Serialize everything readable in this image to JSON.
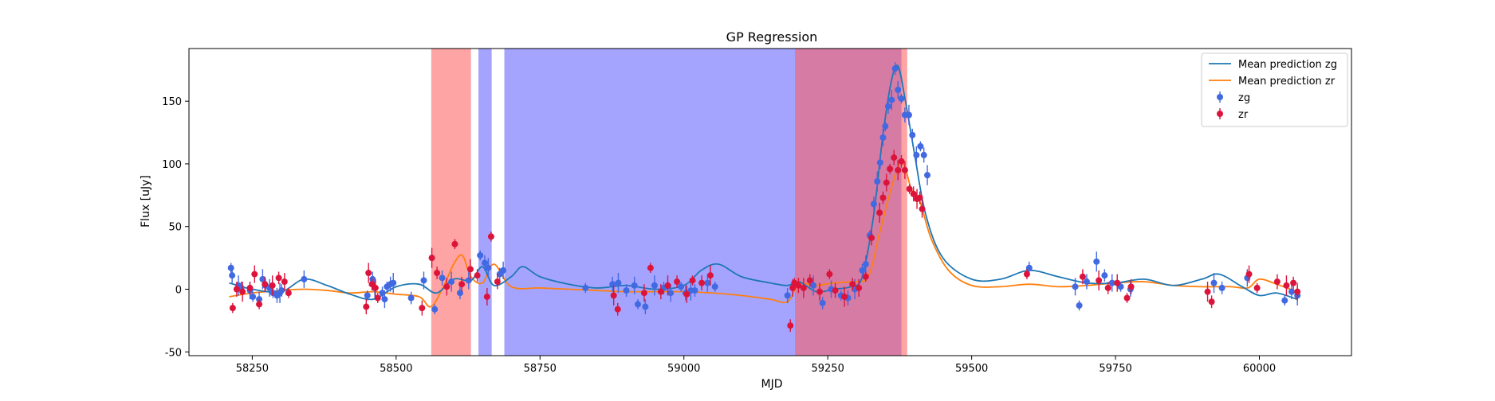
{
  "chart_data": {
    "type": "scatter",
    "title": "GP Regression",
    "xlabel": "MJD",
    "ylabel": "Flux [uJy]",
    "xlim": [
      58140,
      60160
    ],
    "ylim": [
      -53,
      192
    ],
    "xticks": [
      58250,
      58500,
      58750,
      59000,
      59250,
      59500,
      59750,
      60000
    ],
    "yticks": [
      -50,
      0,
      50,
      100,
      150
    ],
    "legend_position": "top-right",
    "legend": [
      "Mean prediction zg",
      "Mean prediction zr",
      "zg",
      "zr"
    ],
    "colors": {
      "zg_line": "#1f77b4",
      "zr_line": "#ff7f0e",
      "zg_points": "#4169e1",
      "zr_points": "#dc143c",
      "span_red": "#ff5a5a",
      "span_blue": "#5a5aff"
    },
    "shaded_regions": [
      {
        "band": "zr",
        "x0": 58561,
        "x1": 58630
      },
      {
        "band": "zg",
        "x0": 58643,
        "x1": 58666
      },
      {
        "band": "zg",
        "x0": 58688,
        "x1": 59193
      },
      {
        "band": "zg",
        "x0": 59193,
        "x1": 59378
      },
      {
        "band": "zr",
        "x0": 59193,
        "x1": 59388
      }
    ],
    "series": [
      {
        "name": "Mean prediction zg",
        "kind": "line",
        "x": [
          58210,
          58250,
          58300,
          58340,
          58380,
          58420,
          58460,
          58500,
          58540,
          58570,
          58600,
          58630,
          58650,
          58670,
          58700,
          58720,
          58750,
          58800,
          58850,
          58900,
          58950,
          59000,
          59030,
          59060,
          59100,
          59150,
          59180,
          59200,
          59230,
          59260,
          59290,
          59310,
          59330,
          59345,
          59360,
          59372,
          59385,
          59400,
          59420,
          59450,
          59500,
          59550,
          59600,
          59650,
          59700,
          59750,
          59800,
          59850,
          59900,
          59930,
          59970,
          60000,
          60030,
          60065
        ],
        "y": [
          5,
          0,
          -2,
          8,
          3,
          -4,
          -8,
          2,
          4,
          -3,
          8,
          7,
          18,
          3,
          10,
          18,
          10,
          4,
          1,
          3,
          0,
          3,
          15,
          20,
          10,
          5,
          3,
          6,
          -2,
          0,
          2,
          10,
          60,
          120,
          165,
          178,
          150,
          110,
          60,
          25,
          8,
          8,
          15,
          10,
          5,
          5,
          8,
          3,
          8,
          12,
          2,
          -5,
          -3,
          -8
        ]
      },
      {
        "name": "Mean prediction zr",
        "kind": "line",
        "x": [
          58210,
          58250,
          58300,
          58340,
          58380,
          58420,
          58460,
          58500,
          58540,
          58560,
          58580,
          58600,
          58615,
          58630,
          58650,
          58670,
          58700,
          58750,
          58800,
          58850,
          58900,
          58950,
          59000,
          59050,
          59100,
          59150,
          59180,
          59200,
          59230,
          59260,
          59290,
          59320,
          59340,
          59360,
          59375,
          59385,
          59395,
          59410,
          59430,
          59460,
          59500,
          59550,
          59600,
          59650,
          59700,
          59750,
          59800,
          59850,
          59900,
          59950,
          59980,
          60000,
          60030,
          60065
        ],
        "y": [
          -6,
          -3,
          -1,
          0,
          -1,
          -3,
          -2,
          -4,
          -6,
          -14,
          0,
          20,
          27,
          10,
          5,
          20,
          2,
          1,
          0,
          -1,
          -2,
          -2,
          -2,
          -3,
          -5,
          -8,
          -10,
          4,
          3,
          5,
          6,
          10,
          45,
          80,
          100,
          96,
          80,
          70,
          40,
          15,
          3,
          2,
          4,
          2,
          3,
          5,
          6,
          3,
          2,
          2,
          1,
          8,
          4,
          -2
        ]
      },
      {
        "name": "zg",
        "kind": "points",
        "x": [
          58213,
          58215,
          58226,
          58231,
          58246,
          58251,
          58262,
          58268,
          58273,
          58280,
          58286,
          58293,
          58298,
          58301,
          58340,
          58450,
          58459,
          58463,
          58476,
          58480,
          58484,
          58490,
          58495,
          58526,
          58548,
          58567,
          58580,
          58596,
          58611,
          58626,
          58646,
          58654,
          58660,
          58680,
          58686,
          58829,
          58876,
          58886,
          58900,
          58914,
          58920,
          58933,
          58949,
          58965,
          58977,
          58995,
          59003,
          59012,
          59019,
          59041,
          59054,
          59180,
          59225,
          59241,
          59256,
          59273,
          59285,
          59297,
          59310,
          59316,
          59323,
          59330,
          59336,
          59341,
          59346,
          59350,
          59355,
          59361,
          59367,
          59372,
          59378,
          59384,
          59391,
          59397,
          59404,
          59411,
          59417,
          59423,
          59600,
          59680,
          59687,
          59700,
          59717,
          59731,
          59744,
          59759,
          59776,
          59921,
          59935,
          59979,
          60044,
          60056,
          60066
        ],
        "y": [
          17,
          11,
          3,
          1,
          -1,
          -6,
          -8,
          8,
          3,
          1,
          -3,
          -5,
          -3,
          -1,
          8,
          -5,
          8,
          1,
          -3,
          -8,
          2,
          4,
          5,
          -7,
          7,
          -16,
          9,
          6,
          -3,
          7,
          27,
          21,
          17,
          12,
          15,
          1,
          4,
          5,
          -1,
          3,
          -12,
          -14,
          3,
          1,
          -3,
          2,
          -3,
          -1,
          -1,
          5,
          2,
          -5,
          3,
          -11,
          0,
          -5,
          -7,
          0,
          15,
          20,
          43,
          68,
          86,
          101,
          121,
          130,
          146,
          151,
          176,
          159,
          152,
          139,
          139,
          123,
          107,
          114,
          107,
          91,
          17,
          2,
          -13,
          6,
          22,
          11,
          5,
          2,
          0,
          5,
          1,
          9,
          -9,
          -2,
          -5
        ]
      },
      {
        "name": "zr",
        "kind": "points",
        "x": [
          58216,
          58223,
          58233,
          58246,
          58254,
          58262,
          58272,
          58285,
          58296,
          58306,
          58313,
          58448,
          58452,
          58458,
          58464,
          58468,
          58545,
          58562,
          58571,
          58588,
          58602,
          58614,
          58629,
          58641,
          58658,
          58665,
          58676,
          58878,
          58885,
          58931,
          58942,
          58960,
          58972,
          58988,
          59005,
          59015,
          59031,
          59046,
          59185,
          59189,
          59192,
          59199,
          59208,
          59219,
          59236,
          59253,
          59263,
          59279,
          59293,
          59304,
          59316,
          59326,
          59340,
          59346,
          59352,
          59358,
          59365,
          59372,
          59378,
          59384,
          59392,
          59399,
          59405,
          59410,
          59414,
          59596,
          59693,
          59721,
          59737,
          59753,
          59770,
          59777,
          59910,
          59917,
          59982,
          59996,
          60031,
          60047,
          60059,
          60066
        ],
        "y": [
          -15,
          0,
          -2,
          1,
          12,
          -12,
          4,
          3,
          9,
          6,
          -3,
          -14,
          13,
          4,
          1,
          -7,
          -15,
          25,
          13,
          2,
          36,
          4,
          16,
          11,
          -6,
          42,
          6,
          -5,
          -16,
          -3,
          17,
          -2,
          3,
          6,
          -4,
          7,
          5,
          11,
          -29,
          1,
          5,
          3,
          1,
          7,
          -2,
          12,
          -1,
          -6,
          4,
          1,
          10,
          41,
          61,
          73,
          85,
          96,
          105,
          95,
          102,
          95,
          80,
          76,
          72,
          73,
          64,
          12,
          10,
          7,
          1,
          5,
          -7,
          2,
          -2,
          -10,
          12,
          1,
          6,
          3,
          5,
          -2
        ]
      }
    ]
  }
}
